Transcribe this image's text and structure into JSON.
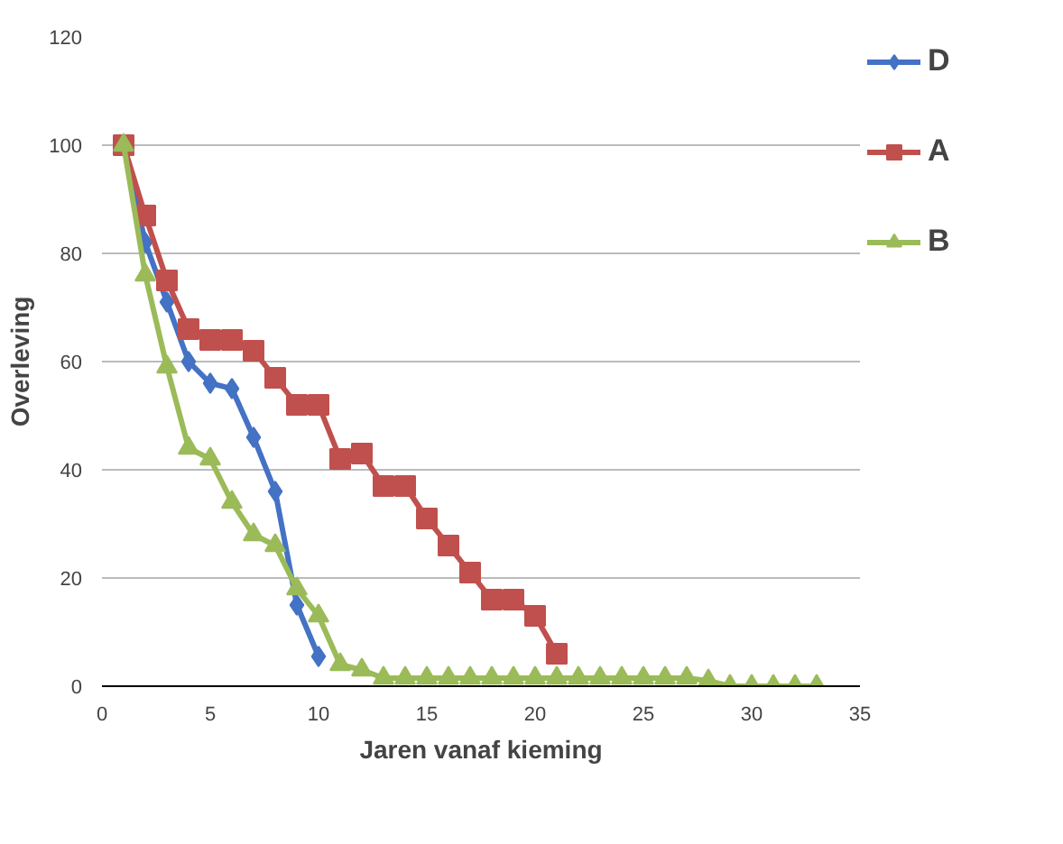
{
  "chart_data": {
    "type": "line",
    "xlabel": "Jaren vanaf kieming",
    "ylabel": "Overleving",
    "xlim": [
      0,
      35
    ],
    "xticks": [
      0,
      5,
      10,
      15,
      20,
      25,
      30,
      35
    ],
    "ylim": [
      0,
      120
    ],
    "yticks": [
      0,
      20,
      40,
      60,
      80,
      100,
      120
    ],
    "grid": "y",
    "legend": "right",
    "series": [
      {
        "name": "D",
        "color": "#4472c4",
        "marker": "diamond",
        "x": [
          1,
          2,
          3,
          4,
          5,
          6,
          7,
          8,
          9,
          10
        ],
        "values": [
          100,
          82,
          71,
          60,
          56,
          55,
          46,
          36,
          15,
          5.5
        ]
      },
      {
        "name": "A",
        "color": "#c0504d",
        "marker": "square",
        "x": [
          1,
          2,
          3,
          4,
          5,
          6,
          7,
          8,
          9,
          10,
          11,
          12,
          13,
          14,
          15,
          16,
          17,
          18,
          19,
          20,
          21
        ],
        "values": [
          100,
          87,
          75,
          66,
          64,
          64,
          62,
          57,
          52,
          52,
          42,
          43,
          37,
          37,
          31,
          26,
          21,
          16,
          16,
          13,
          6
        ]
      },
      {
        "name": "B",
        "color": "#9bbb59",
        "marker": "triangle",
        "x": [
          1,
          2,
          3,
          4,
          5,
          6,
          7,
          8,
          9,
          10,
          11,
          12,
          13,
          14,
          15,
          16,
          17,
          18,
          19,
          20,
          21,
          22,
          23,
          24,
          25,
          26,
          27,
          28,
          29,
          30,
          31,
          32,
          33
        ],
        "values": [
          100,
          76,
          59,
          44,
          42,
          34,
          28,
          26,
          18,
          13,
          4,
          3,
          1.5,
          1.5,
          1.5,
          1.5,
          1.5,
          1.5,
          1.5,
          1.5,
          1.5,
          1.5,
          1.5,
          1.5,
          1.5,
          1.5,
          1.5,
          1,
          0,
          0,
          0,
          0,
          0
        ]
      }
    ]
  }
}
